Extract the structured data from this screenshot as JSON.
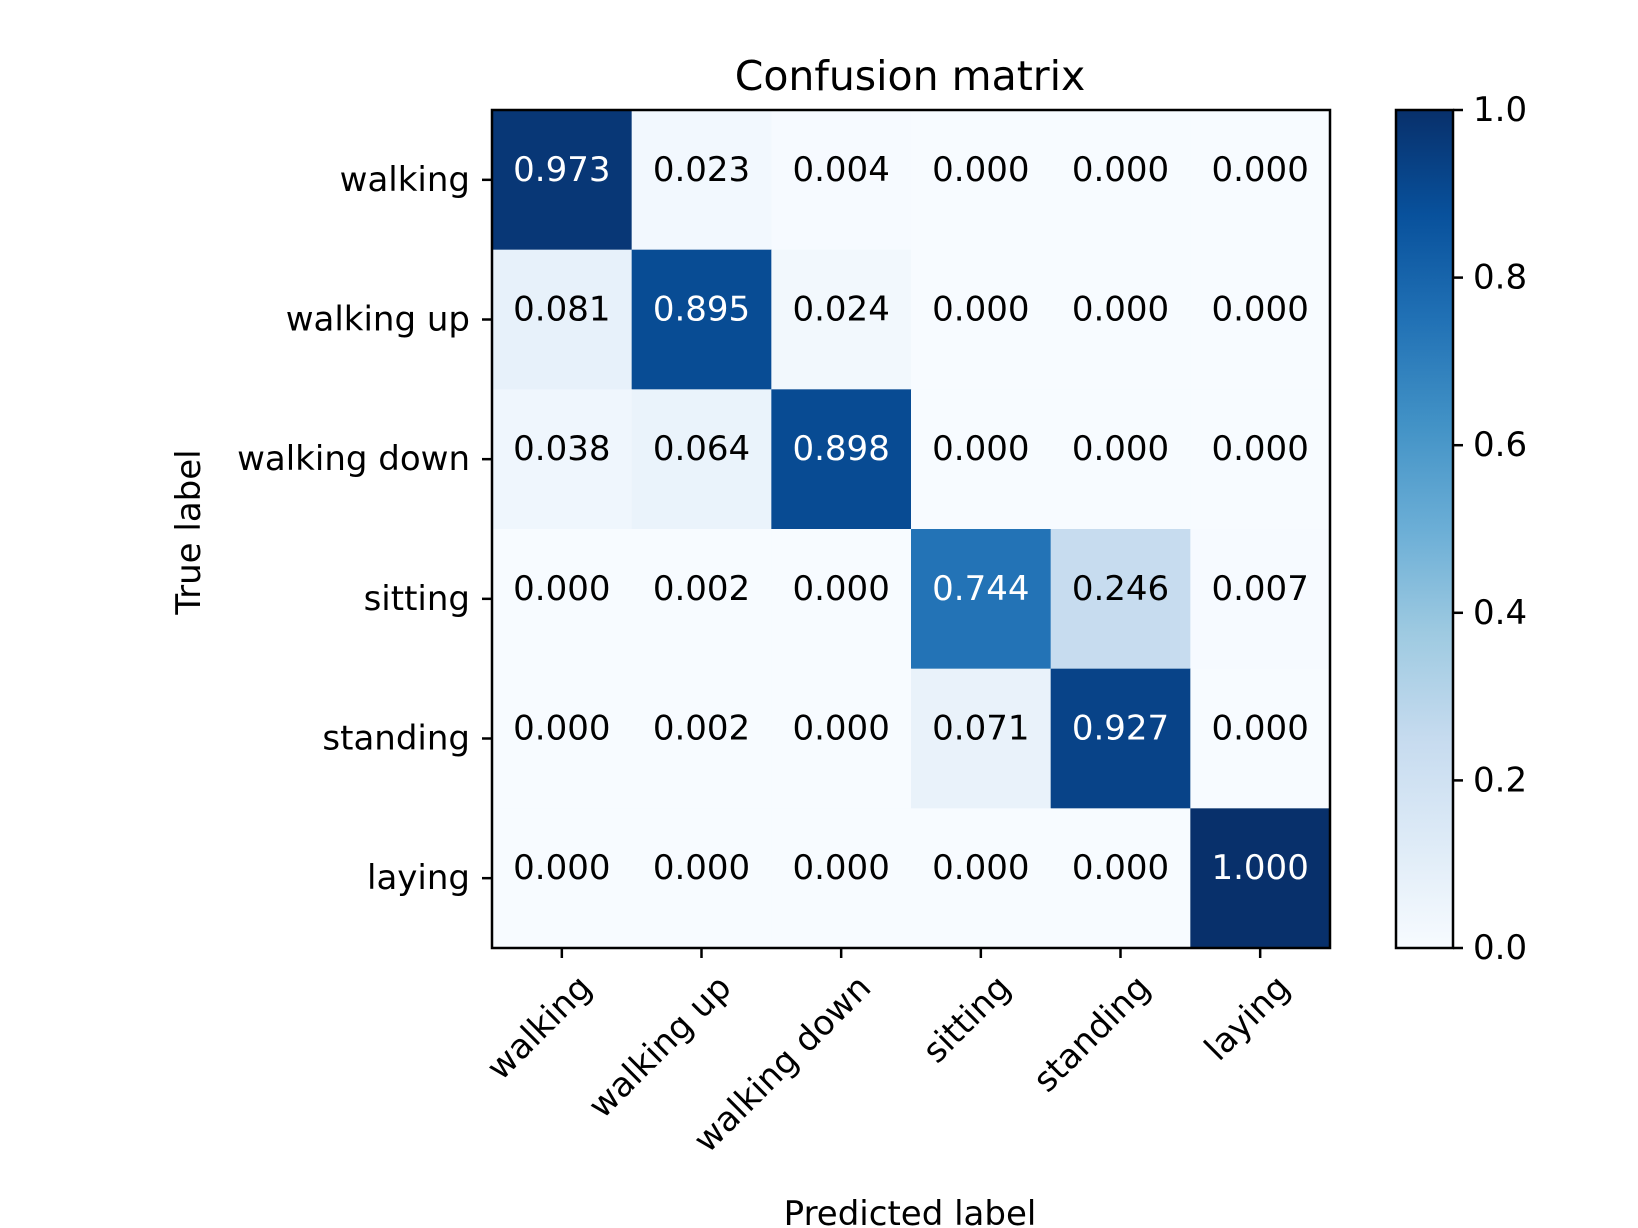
{
  "chart_data": {
    "type": "heatmap",
    "title": "Confusion matrix",
    "xlabel": "Predicted label",
    "ylabel": "True label",
    "labels": [
      "walking",
      "walking up",
      "walking down",
      "sitting",
      "standing",
      "laying"
    ],
    "matrix": [
      [
        0.973,
        0.023,
        0.004,
        0.0,
        0.0,
        0.0
      ],
      [
        0.081,
        0.895,
        0.024,
        0.0,
        0.0,
        0.0
      ],
      [
        0.038,
        0.064,
        0.898,
        0.0,
        0.0,
        0.0
      ],
      [
        0.0,
        0.002,
        0.0,
        0.744,
        0.246,
        0.007
      ],
      [
        0.0,
        0.002,
        0.0,
        0.071,
        0.927,
        0.0
      ],
      [
        0.0,
        0.0,
        0.0,
        0.0,
        0.0,
        1.0
      ]
    ],
    "value_format": "3 decimals",
    "colormap": "Blues",
    "colorbar": {
      "range": [
        0.0,
        1.0
      ],
      "ticks": [
        "0.0",
        "0.2",
        "0.4",
        "0.6",
        "0.8",
        "1.0"
      ],
      "colors": [
        "#f7fbff",
        "#deebf7",
        "#c6dbef",
        "#9ecae1",
        "#6baed6",
        "#4292c6",
        "#2171b5",
        "#08519c",
        "#08306b"
      ]
    },
    "text_colors": {
      "dark_cell": "#ffffff",
      "light_cell": "#000000"
    }
  }
}
